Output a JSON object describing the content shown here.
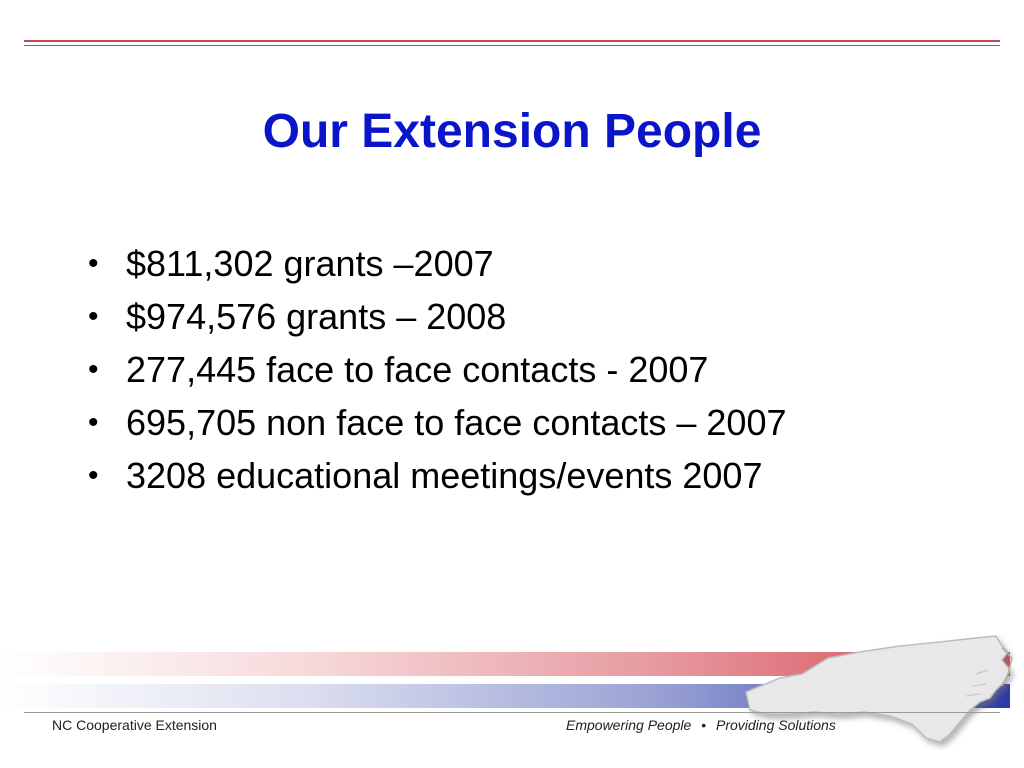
{
  "slide": {
    "title": "Our Extension People",
    "bullets": [
      {
        "marker": "•",
        "text": "$811,302 grants –2007"
      },
      {
        "marker": "•",
        "text": "$974,576 grants – 2008"
      },
      {
        "marker": "•",
        "text": "277,445 face to face contacts - 2007"
      },
      {
        "marker": "•",
        "text": "695,705 non face to face contacts – 2007"
      },
      {
        "marker": "•",
        "text": "3208 educational meetings/events 2007"
      }
    ]
  },
  "footer": {
    "organization": "NC Cooperative Extension",
    "tagline_part1": "Empowering People",
    "separator": "•",
    "tagline_part2": "Providing Solutions"
  },
  "icons": {
    "state_map": "north-carolina-map-icon"
  },
  "colors": {
    "title": "#0a14c8",
    "accent_red": "#d9444f",
    "accent_blue": "#2b3aa5"
  }
}
